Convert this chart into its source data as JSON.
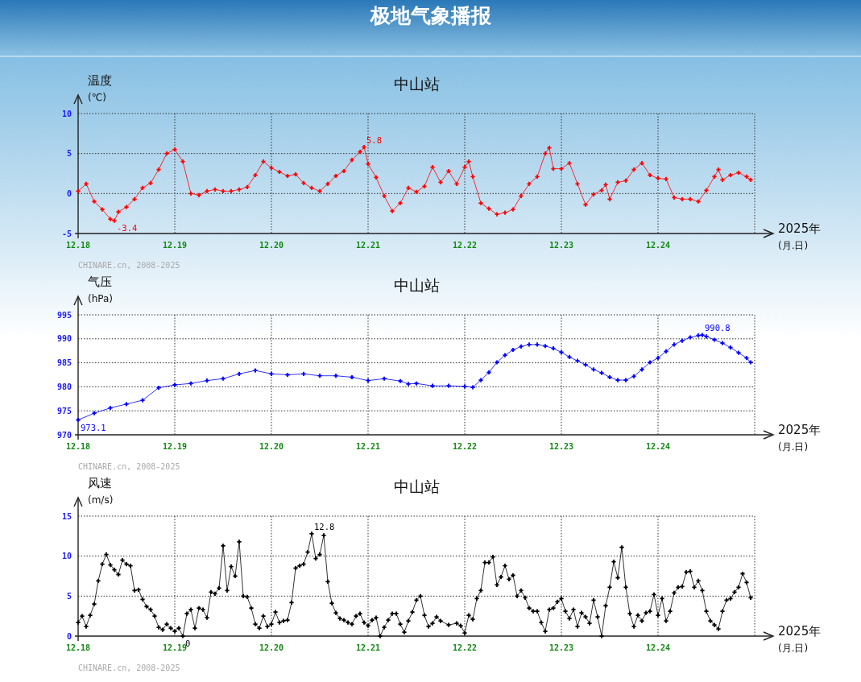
{
  "chart_data": [
    {
      "type": "line",
      "title": "中山站",
      "xlabel": "2025年 (月.日)",
      "ylabel": "温度 (℃)",
      "annotations": [
        "极地气象播报",
        "CHINARE.cn, 2008-2025",
        {
          "text": "-3.4",
          "x": "2025-12-18T09:00",
          "y": -3.4
        },
        {
          "text": "5.8",
          "x": "2025-12-20T23:00",
          "y": 5.8
        }
      ],
      "xlim": [
        "2025-12-18",
        "2025-12-25"
      ],
      "xticks": [
        {
          "value": "2025-12-18",
          "label": "12.18"
        },
        {
          "value": "2025-12-19",
          "label": "12.19"
        },
        {
          "value": "2025-12-20",
          "label": "12.20"
        },
        {
          "value": "2025-12-21",
          "label": "12.21"
        },
        {
          "value": "2025-12-22",
          "label": "12.22"
        },
        {
          "value": "2025-12-23",
          "label": "12.23"
        },
        {
          "value": "2025-12-24",
          "label": "12.24"
        },
        {
          "value": "2025-12-25",
          "label": null
        }
      ],
      "ylim": [
        -5,
        10
      ],
      "yticks": [
        -5,
        0,
        5,
        10
      ],
      "grid": true,
      "marker": "cross",
      "x": [
        "2025-12-18T00:00",
        "2025-12-18T02:00",
        "2025-12-18T04:00",
        "2025-12-18T06:00",
        "2025-12-18T08:00",
        "2025-12-18T09:00",
        "2025-12-18T10:00",
        "2025-12-18T12:00",
        "2025-12-18T14:00",
        "2025-12-18T16:00",
        "2025-12-18T18:00",
        "2025-12-18T20:00",
        "2025-12-18T22:00",
        "2025-12-19T00:00",
        "2025-12-19T02:00",
        "2025-12-19T04:00",
        "2025-12-19T06:00",
        "2025-12-19T08:00",
        "2025-12-19T10:00",
        "2025-12-19T12:00",
        "2025-12-19T14:00",
        "2025-12-19T16:00",
        "2025-12-19T18:00",
        "2025-12-19T20:00",
        "2025-12-19T22:00",
        "2025-12-20T00:00",
        "2025-12-20T02:00",
        "2025-12-20T04:00",
        "2025-12-20T06:00",
        "2025-12-20T08:00",
        "2025-12-20T10:00",
        "2025-12-20T12:00",
        "2025-12-20T14:00",
        "2025-12-20T16:00",
        "2025-12-20T18:00",
        "2025-12-20T20:00",
        "2025-12-20T22:00",
        "2025-12-20T23:00",
        "2025-12-21T00:00",
        "2025-12-21T02:00",
        "2025-12-21T04:00",
        "2025-12-21T06:00",
        "2025-12-21T08:00",
        "2025-12-21T10:00",
        "2025-12-21T12:00",
        "2025-12-21T14:00",
        "2025-12-21T16:00",
        "2025-12-21T18:00",
        "2025-12-21T20:00",
        "2025-12-21T22:00",
        "2025-12-22T00:00",
        "2025-12-22T01:00",
        "2025-12-22T02:00",
        "2025-12-22T04:00",
        "2025-12-22T06:00",
        "2025-12-22T08:00",
        "2025-12-22T10:00",
        "2025-12-22T12:00",
        "2025-12-22T14:00",
        "2025-12-22T16:00",
        "2025-12-22T18:00",
        "2025-12-22T20:00",
        "2025-12-22T21:00",
        "2025-12-22T22:00",
        "2025-12-23T00:00",
        "2025-12-23T02:00",
        "2025-12-23T04:00",
        "2025-12-23T06:00",
        "2025-12-23T08:00",
        "2025-12-23T10:00",
        "2025-12-23T11:00",
        "2025-12-23T12:00",
        "2025-12-23T14:00",
        "2025-12-23T16:00",
        "2025-12-23T18:00",
        "2025-12-23T20:00",
        "2025-12-23T22:00",
        "2025-12-24T00:00",
        "2025-12-24T02:00",
        "2025-12-24T04:00",
        "2025-12-24T06:00",
        "2025-12-24T08:00",
        "2025-12-24T10:00",
        "2025-12-24T12:00",
        "2025-12-24T14:00",
        "2025-12-24T15:00",
        "2025-12-24T16:00",
        "2025-12-24T18:00",
        "2025-12-24T20:00",
        "2025-12-24T22:00",
        "2025-12-24T23:00"
      ],
      "series": [
        {
          "color": "#ff0000",
          "values": [
            0.3,
            1.2,
            -1.0,
            -2.0,
            -3.2,
            -3.4,
            -2.3,
            -1.7,
            -0.7,
            0.7,
            1.3,
            3.0,
            5.0,
            5.5,
            4.0,
            0,
            -0.2,
            0.3,
            0.5,
            0.3,
            0.3,
            0.5,
            0.8,
            2.3,
            4.0,
            3.2,
            2.7,
            2.2,
            2.4,
            1.3,
            0.7,
            0.3,
            1.2,
            2.2,
            2.8,
            4.2,
            5.2,
            5.8,
            3.7,
            2.0,
            -0.3,
            -2.2,
            -1.2,
            0.7,
            0.2,
            0.9,
            3.3,
            1.4,
            2.8,
            1.2,
            3.3,
            4.0,
            2.1,
            -1.2,
            -1.9,
            -2.6,
            -2.4,
            -2.0,
            -0.3,
            1.2,
            2.1,
            5.0,
            5.7,
            3.1,
            3.1,
            3.8,
            1.2,
            -1.4,
            -0.1,
            0.4,
            1.1,
            -0.7,
            1.4,
            1.6,
            3.0,
            3.8,
            2.3,
            1.9,
            1.8,
            -0.5,
            -0.7,
            -0.7,
            -1.0,
            0.4,
            2.1,
            3.0,
            1.7,
            2.3,
            2.6,
            2.1,
            1.7
          ]
        }
      ]
    },
    {
      "type": "line",
      "title": "中山站",
      "xlabel": "2025年 (月.日)",
      "ylabel": "气压 (hPa)",
      "annotations": [
        "CHINARE.cn, 2008-2025",
        {
          "text": "973.1",
          "x": "2025-12-18T00:00",
          "y": 973.1
        },
        {
          "text": "990.8",
          "x": "2025-12-24T11:00",
          "y": 990.8
        }
      ],
      "xlim": [
        "2025-12-18",
        "2025-12-25"
      ],
      "xticks": [
        {
          "value": "2025-12-18",
          "label": "12.18"
        },
        {
          "value": "2025-12-19",
          "label": "12.19"
        },
        {
          "value": "2025-12-20",
          "label": "12.20"
        },
        {
          "value": "2025-12-21",
          "label": "12.21"
        },
        {
          "value": "2025-12-22",
          "label": "12.22"
        },
        {
          "value": "2025-12-23",
          "label": "12.23"
        },
        {
          "value": "2025-12-24",
          "label": "12.24"
        },
        {
          "value": "2025-12-25",
          "label": null
        }
      ],
      "ylim": [
        970,
        995
      ],
      "yticks": [
        970,
        975,
        980,
        985,
        990,
        995
      ],
      "grid": true,
      "marker": "cross",
      "x": [
        "2025-12-18T00:00",
        "2025-12-18T04:00",
        "2025-12-18T08:00",
        "2025-12-18T12:00",
        "2025-12-18T16:00",
        "2025-12-18T20:00",
        "2025-12-19T00:00",
        "2025-12-19T04:00",
        "2025-12-19T08:00",
        "2025-12-19T12:00",
        "2025-12-19T16:00",
        "2025-12-19T20:00",
        "2025-12-20T00:00",
        "2025-12-20T04:00",
        "2025-12-20T08:00",
        "2025-12-20T12:00",
        "2025-12-20T16:00",
        "2025-12-20T20:00",
        "2025-12-21T00:00",
        "2025-12-21T04:00",
        "2025-12-21T08:00",
        "2025-12-21T10:00",
        "2025-12-21T12:00",
        "2025-12-21T16:00",
        "2025-12-21T20:00",
        "2025-12-22T00:00",
        "2025-12-22T02:00",
        "2025-12-22T04:00",
        "2025-12-22T06:00",
        "2025-12-22T08:00",
        "2025-12-22T10:00",
        "2025-12-22T12:00",
        "2025-12-22T14:00",
        "2025-12-22T16:00",
        "2025-12-22T18:00",
        "2025-12-22T20:00",
        "2025-12-22T22:00",
        "2025-12-23T00:00",
        "2025-12-23T02:00",
        "2025-12-23T04:00",
        "2025-12-23T06:00",
        "2025-12-23T08:00",
        "2025-12-23T10:00",
        "2025-12-23T12:00",
        "2025-12-23T14:00",
        "2025-12-23T16:00",
        "2025-12-23T18:00",
        "2025-12-23T20:00",
        "2025-12-23T22:00",
        "2025-12-24T00:00",
        "2025-12-24T02:00",
        "2025-12-24T04:00",
        "2025-12-24T06:00",
        "2025-12-24T08:00",
        "2025-12-24T10:00",
        "2025-12-24T11:00",
        "2025-12-24T12:00",
        "2025-12-24T14:00",
        "2025-12-24T16:00",
        "2025-12-24T18:00",
        "2025-12-24T20:00",
        "2025-12-24T22:00",
        "2025-12-24T23:00"
      ],
      "series": [
        {
          "color": "#0000ff",
          "values": [
            973.1,
            974.5,
            975.6,
            976.4,
            977.2,
            979.8,
            980.4,
            980.7,
            981.3,
            981.7,
            982.7,
            983.4,
            982.7,
            982.5,
            982.7,
            982.3,
            982.3,
            982.0,
            981.3,
            981.7,
            981.2,
            980.6,
            980.7,
            980.2,
            980.2,
            980.1,
            979.9,
            981.4,
            983.0,
            985.1,
            986.6,
            987.7,
            988.4,
            988.8,
            988.8,
            988.5,
            988.0,
            987.2,
            986.2,
            985.4,
            984.6,
            983.6,
            982.9,
            982.0,
            981.4,
            981.4,
            982.2,
            983.6,
            985.1,
            986.0,
            987.4,
            988.8,
            989.6,
            990.3,
            990.7,
            990.8,
            990.5,
            989.8,
            989.1,
            988.2,
            987.1,
            986.0,
            985.1
          ]
        }
      ]
    },
    {
      "type": "line",
      "title": "中山站",
      "xlabel": "2025年 (月.日)",
      "ylabel": "风速 (m/s)",
      "annotations": [
        "CHINARE.cn, 2008-2025",
        {
          "text": "12.8",
          "x": "2025-12-20T10:00",
          "y": 12.8
        },
        {
          "text": "0",
          "x": "2025-12-19T02:00",
          "y": 0
        }
      ],
      "xlim": [
        "2025-12-18",
        "2025-12-25"
      ],
      "xticks": [
        {
          "value": "2025-12-18",
          "label": "12.18"
        },
        {
          "value": "2025-12-19",
          "label": "12.19"
        },
        {
          "value": "2025-12-20",
          "label": "12.20"
        },
        {
          "value": "2025-12-21",
          "label": "12.21"
        },
        {
          "value": "2025-12-22",
          "label": "12.22"
        },
        {
          "value": "2025-12-23",
          "label": "12.23"
        },
        {
          "value": "2025-12-24",
          "label": "12.24"
        },
        {
          "value": "2025-12-25",
          "label": null
        }
      ],
      "ylim": [
        0,
        15
      ],
      "yticks": [
        0,
        5,
        10,
        15
      ],
      "grid": true,
      "marker": "cross",
      "x": [
        "2025-12-18T00:00",
        "2025-12-18T01:00",
        "2025-12-18T02:00",
        "2025-12-18T03:00",
        "2025-12-18T04:00",
        "2025-12-18T05:00",
        "2025-12-18T06:00",
        "2025-12-18T07:00",
        "2025-12-18T08:00",
        "2025-12-18T09:00",
        "2025-12-18T10:00",
        "2025-12-18T11:00",
        "2025-12-18T12:00",
        "2025-12-18T13:00",
        "2025-12-18T14:00",
        "2025-12-18T15:00",
        "2025-12-18T16:00",
        "2025-12-18T17:00",
        "2025-12-18T18:00",
        "2025-12-18T19:00",
        "2025-12-18T20:00",
        "2025-12-18T21:00",
        "2025-12-18T22:00",
        "2025-12-18T23:00",
        "2025-12-19T00:00",
        "2025-12-19T01:00",
        "2025-12-19T02:00",
        "2025-12-19T03:00",
        "2025-12-19T04:00",
        "2025-12-19T05:00",
        "2025-12-19T06:00",
        "2025-12-19T07:00",
        "2025-12-19T08:00",
        "2025-12-19T09:00",
        "2025-12-19T10:00",
        "2025-12-19T11:00",
        "2025-12-19T12:00",
        "2025-12-19T13:00",
        "2025-12-19T14:00",
        "2025-12-19T15:00",
        "2025-12-19T16:00",
        "2025-12-19T17:00",
        "2025-12-19T18:00",
        "2025-12-19T19:00",
        "2025-12-19T20:00",
        "2025-12-19T21:00",
        "2025-12-19T22:00",
        "2025-12-19T23:00",
        "2025-12-20T00:00",
        "2025-12-20T01:00",
        "2025-12-20T02:00",
        "2025-12-20T03:00",
        "2025-12-20T04:00",
        "2025-12-20T05:00",
        "2025-12-20T06:00",
        "2025-12-20T07:00",
        "2025-12-20T08:00",
        "2025-12-20T09:00",
        "2025-12-20T10:00",
        "2025-12-20T11:00",
        "2025-12-20T12:00",
        "2025-12-20T13:00",
        "2025-12-20T14:00",
        "2025-12-20T15:00",
        "2025-12-20T16:00",
        "2025-12-20T17:00",
        "2025-12-20T18:00",
        "2025-12-20T19:00",
        "2025-12-20T20:00",
        "2025-12-20T21:00",
        "2025-12-20T22:00",
        "2025-12-20T23:00",
        "2025-12-21T00:00",
        "2025-12-21T01:00",
        "2025-12-21T02:00",
        "2025-12-21T03:00",
        "2025-12-21T04:00",
        "2025-12-21T05:00",
        "2025-12-21T06:00",
        "2025-12-21T07:00",
        "2025-12-21T08:00",
        "2025-12-21T09:00",
        "2025-12-21T10:00",
        "2025-12-21T11:00",
        "2025-12-21T12:00",
        "2025-12-21T13:00",
        "2025-12-21T14:00",
        "2025-12-21T15:00",
        "2025-12-21T16:00",
        "2025-12-21T17:00",
        "2025-12-21T18:00",
        "2025-12-21T20:00",
        "2025-12-21T22:00",
        "2025-12-21T23:00",
        "2025-12-22T00:00",
        "2025-12-22T01:00",
        "2025-12-22T02:00",
        "2025-12-22T03:00",
        "2025-12-22T04:00",
        "2025-12-22T05:00",
        "2025-12-22T06:00",
        "2025-12-22T07:00",
        "2025-12-22T08:00",
        "2025-12-22T09:00",
        "2025-12-22T10:00",
        "2025-12-22T11:00",
        "2025-12-22T12:00",
        "2025-12-22T13:00",
        "2025-12-22T14:00",
        "2025-12-22T15:00",
        "2025-12-22T16:00",
        "2025-12-22T17:00",
        "2025-12-22T18:00",
        "2025-12-22T19:00",
        "2025-12-22T20:00",
        "2025-12-22T21:00",
        "2025-12-22T22:00",
        "2025-12-22T23:00",
        "2025-12-23T00:00",
        "2025-12-23T01:00",
        "2025-12-23T02:00",
        "2025-12-23T03:00",
        "2025-12-23T04:00",
        "2025-12-23T05:00",
        "2025-12-23T06:00",
        "2025-12-23T07:00",
        "2025-12-23T08:00",
        "2025-12-23T09:00",
        "2025-12-23T10:00",
        "2025-12-23T11:00",
        "2025-12-23T12:00",
        "2025-12-23T13:00",
        "2025-12-23T14:00",
        "2025-12-23T15:00",
        "2025-12-23T16:00",
        "2025-12-23T17:00",
        "2025-12-23T18:00",
        "2025-12-23T19:00",
        "2025-12-23T20:00",
        "2025-12-23T21:00",
        "2025-12-23T22:00",
        "2025-12-23T23:00",
        "2025-12-24T00:00",
        "2025-12-24T01:00",
        "2025-12-24T02:00",
        "2025-12-24T03:00",
        "2025-12-24T04:00",
        "2025-12-24T05:00",
        "2025-12-24T06:00",
        "2025-12-24T07:00",
        "2025-12-24T08:00",
        "2025-12-24T09:00",
        "2025-12-24T10:00",
        "2025-12-24T11:00",
        "2025-12-24T12:00",
        "2025-12-24T13:00",
        "2025-12-24T14:00",
        "2025-12-24T15:00",
        "2025-12-24T16:00",
        "2025-12-24T17:00",
        "2025-12-24T18:00",
        "2025-12-24T19:00",
        "2025-12-24T20:00",
        "2025-12-24T21:00",
        "2025-12-24T22:00",
        "2025-12-24T23:00"
      ],
      "series": [
        {
          "color": "#000000",
          "values": [
            1.7,
            2.5,
            1.2,
            2.6,
            4.0,
            6.9,
            9.0,
            10.2,
            8.9,
            8.3,
            7.7,
            9.5,
            9.0,
            8.8,
            5.7,
            5.8,
            4.6,
            3.7,
            3.3,
            2.5,
            1.1,
            0.8,
            1.5,
            1.0,
            0.6,
            1.0,
            0,
            2.8,
            3.3,
            1.0,
            3.5,
            3.3,
            2.3,
            5.5,
            5.3,
            6.0,
            11.3,
            5.7,
            8.7,
            7.5,
            11.8,
            5.0,
            4.9,
            3.5,
            1.5,
            1.0,
            2.5,
            1.2,
            1.5,
            3.0,
            1.7,
            1.9,
            2.0,
            4.2,
            8.5,
            8.8,
            9.0,
            10.5,
            12.8,
            9.7,
            10.2,
            12.6,
            6.8,
            4.1,
            2.9,
            2.2,
            2.0,
            1.7,
            1.5,
            2.5,
            2.8,
            1.7,
            1.3,
            2.0,
            2.3,
            0,
            1.1,
            2.0,
            2.8,
            2.8,
            1.5,
            0.5,
            1.9,
            3.0,
            4.5,
            5.0,
            2.6,
            1.2,
            1.6,
            2.4,
            1.9,
            1.4,
            1.6,
            1.3,
            0.4,
            2.6,
            2.1,
            4.7,
            5.7,
            9.2,
            9.2,
            9.9,
            6.4,
            7.4,
            8.8,
            7.1,
            7.6,
            5.0,
            5.7,
            4.8,
            3.5,
            3.1,
            3.1,
            1.7,
            0.6,
            3.3,
            3.5,
            4.3,
            4.7,
            3.1,
            2.2,
            3.3,
            1.2,
            2.9,
            2.4,
            1.6,
            4.5,
            2.4,
            0,
            3.8,
            6.1,
            9.3,
            7.3,
            11.1,
            6.1,
            2.8,
            1.2,
            2.6,
            1.9,
            2.9,
            3.1,
            5.2,
            2.6,
            4.7,
            1.9,
            3.1,
            5.4,
            6.1,
            6.2,
            8.0,
            8.1,
            6.1,
            6.9,
            5.7,
            3.1,
            1.9,
            1.4,
            0.9,
            3.1,
            4.5,
            4.7,
            5.5,
            6.1,
            7.8,
            6.7,
            4.8
          ]
        }
      ]
    }
  ]
}
